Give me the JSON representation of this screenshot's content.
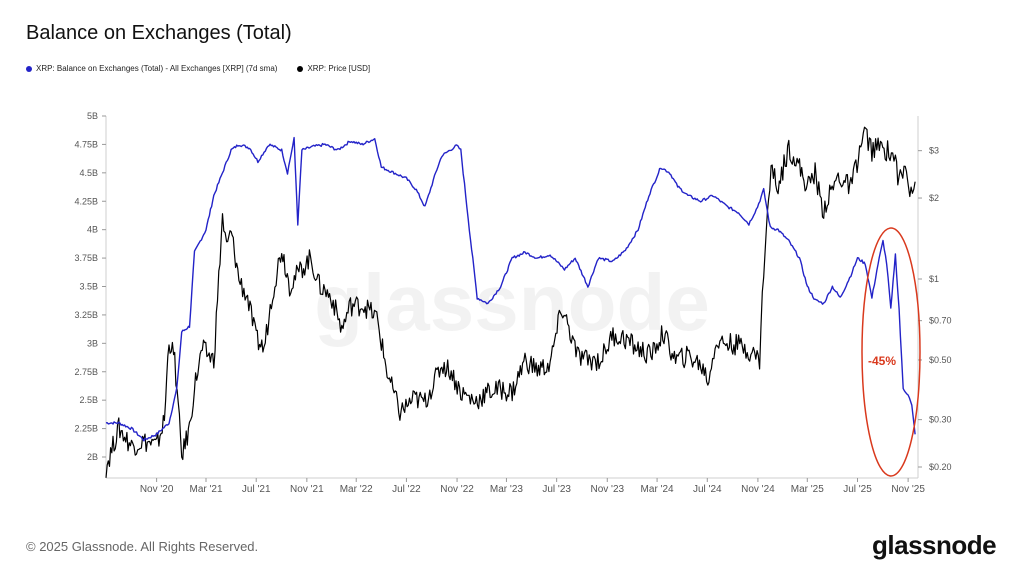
{
  "page": {
    "title": "Balance on Exchanges (Total)",
    "footer": "© 2025 Glassnode. All Rights Reserved.",
    "brand": "glassnode",
    "watermark": "glassnode"
  },
  "colors": {
    "balance": "#2323c8",
    "price": "#000000",
    "annotation": "#d9391d",
    "grid": "#e6e6e6",
    "axis": "#555555"
  },
  "chart_data": {
    "type": "line",
    "x_ticks": [
      "Nov '20",
      "Mar '21",
      "Jul '21",
      "Nov '21",
      "Mar '22",
      "Jul '22",
      "Nov '22",
      "Mar '23",
      "Jul '23",
      "Nov '23",
      "Mar '24",
      "Jul '24",
      "Nov '24",
      "Mar '25",
      "Jul '25",
      "Nov '25"
    ],
    "y_left": {
      "ticks": [
        "5B",
        "4.75B",
        "4.5B",
        "4.25B",
        "4B",
        "3.75B",
        "3.5B",
        "3.25B",
        "3B",
        "2.75B",
        "2.5B",
        "2.25B",
        "2B"
      ],
      "min": 2.0,
      "max": 5.0,
      "unit": "B XRP"
    },
    "y_right": {
      "ticks": [
        "$3",
        "$2",
        "$1",
        "$0.70",
        "$0.50",
        "$0.30",
        "$0.20"
      ],
      "values": [
        3,
        2,
        1,
        0.7,
        0.5,
        0.3,
        0.2
      ],
      "scale": "log"
    },
    "annotation": {
      "label": "-45%"
    },
    "series": [
      {
        "name": "XRP: Balance on Exchanges (Total) - All Exchanges [XRP] (7d sma)",
        "axis": "left",
        "points": [
          [
            "2020-07-01",
            2.3
          ],
          [
            "2020-08-01",
            2.3
          ],
          [
            "2020-09-01",
            2.25
          ],
          [
            "2020-10-01",
            2.15
          ],
          [
            "2020-11-01",
            2.2
          ],
          [
            "2020-12-01",
            2.3
          ],
          [
            "2020-12-20",
            2.6
          ],
          [
            "2021-01-01",
            3.1
          ],
          [
            "2021-01-20",
            3.15
          ],
          [
            "2021-02-01",
            3.8
          ],
          [
            "2021-03-01",
            4.0
          ],
          [
            "2021-03-20",
            4.3
          ],
          [
            "2021-04-10",
            4.5
          ],
          [
            "2021-05-01",
            4.7
          ],
          [
            "2021-05-20",
            4.75
          ],
          [
            "2021-06-15",
            4.72
          ],
          [
            "2021-07-05",
            4.6
          ],
          [
            "2021-08-01",
            4.75
          ],
          [
            "2021-09-01",
            4.7
          ],
          [
            "2021-09-15",
            4.5
          ],
          [
            "2021-10-01",
            4.8
          ],
          [
            "2021-10-10",
            4.05
          ],
          [
            "2021-10-20",
            4.7
          ],
          [
            "2021-11-15",
            4.73
          ],
          [
            "2021-12-15",
            4.75
          ],
          [
            "2022-01-15",
            4.7
          ],
          [
            "2022-02-15",
            4.78
          ],
          [
            "2022-03-15",
            4.75
          ],
          [
            "2022-04-15",
            4.8
          ],
          [
            "2022-05-01",
            4.55
          ],
          [
            "2022-06-01",
            4.5
          ],
          [
            "2022-07-01",
            4.45
          ],
          [
            "2022-07-25",
            4.35
          ],
          [
            "2022-08-15",
            4.2
          ],
          [
            "2022-09-10",
            4.5
          ],
          [
            "2022-09-25",
            4.65
          ],
          [
            "2022-10-15",
            4.7
          ],
          [
            "2022-10-31",
            4.74
          ],
          [
            "2022-11-10",
            4.7
          ],
          [
            "2022-12-01",
            4.0
          ],
          [
            "2022-12-20",
            3.4
          ],
          [
            "2023-01-15",
            3.35
          ],
          [
            "2023-02-15",
            3.5
          ],
          [
            "2023-03-15",
            3.75
          ],
          [
            "2023-04-15",
            3.8
          ],
          [
            "2023-05-15",
            3.75
          ],
          [
            "2023-06-15",
            3.78
          ],
          [
            "2023-07-20",
            3.65
          ],
          [
            "2023-08-15",
            3.75
          ],
          [
            "2023-09-15",
            3.5
          ],
          [
            "2023-10-10",
            3.75
          ],
          [
            "2023-11-15",
            3.72
          ],
          [
            "2023-12-15",
            3.82
          ],
          [
            "2024-01-15",
            4.0
          ],
          [
            "2024-02-10",
            4.3
          ],
          [
            "2024-03-10",
            4.55
          ],
          [
            "2024-04-01",
            4.5
          ],
          [
            "2024-04-20",
            4.38
          ],
          [
            "2024-05-15",
            4.3
          ],
          [
            "2024-06-15",
            4.25
          ],
          [
            "2024-07-15",
            4.3
          ],
          [
            "2024-08-20",
            4.2
          ],
          [
            "2024-09-15",
            4.15
          ],
          [
            "2024-10-10",
            4.05
          ],
          [
            "2024-10-31",
            4.2
          ],
          [
            "2024-11-15",
            4.35
          ],
          [
            "2024-12-01",
            4.02
          ],
          [
            "2024-12-20",
            4.0
          ],
          [
            "2025-01-15",
            3.9
          ],
          [
            "2025-02-10",
            3.75
          ],
          [
            "2025-03-01",
            3.5
          ],
          [
            "2025-03-20",
            3.38
          ],
          [
            "2025-04-10",
            3.35
          ],
          [
            "2025-05-01",
            3.5
          ],
          [
            "2025-05-20",
            3.4
          ],
          [
            "2025-06-15",
            3.6
          ],
          [
            "2025-07-01",
            3.75
          ],
          [
            "2025-07-20",
            3.7
          ],
          [
            "2025-08-05",
            3.4
          ],
          [
            "2025-08-20",
            3.7
          ],
          [
            "2025-09-01",
            3.9
          ],
          [
            "2025-09-10",
            3.7
          ],
          [
            "2025-09-20",
            3.3
          ],
          [
            "2025-10-01",
            3.78
          ],
          [
            "2025-10-10",
            3.3
          ],
          [
            "2025-10-20",
            2.6
          ],
          [
            "2025-11-01",
            2.55
          ],
          [
            "2025-11-10",
            2.45
          ],
          [
            "2025-11-18",
            2.2
          ]
        ]
      },
      {
        "name": "XRP: Price [USD]",
        "axis": "right",
        "points": [
          [
            "2020-07-01",
            0.2
          ],
          [
            "2020-08-01",
            0.28
          ],
          [
            "2020-09-01",
            0.24
          ],
          [
            "2020-10-01",
            0.25
          ],
          [
            "2020-11-01",
            0.24
          ],
          [
            "2020-11-20",
            0.3
          ],
          [
            "2020-12-01",
            0.6
          ],
          [
            "2020-12-15",
            0.5
          ],
          [
            "2021-01-01",
            0.22
          ],
          [
            "2021-01-20",
            0.28
          ],
          [
            "2021-02-01",
            0.4
          ],
          [
            "2021-02-20",
            0.55
          ],
          [
            "2021-03-20",
            0.5
          ],
          [
            "2021-04-10",
            1.7
          ],
          [
            "2021-04-20",
            1.3
          ],
          [
            "2021-05-01",
            1.5
          ],
          [
            "2021-05-20",
            1.0
          ],
          [
            "2021-06-10",
            0.85
          ],
          [
            "2021-07-01",
            0.6
          ],
          [
            "2021-07-20",
            0.55
          ],
          [
            "2021-08-10",
            0.9
          ],
          [
            "2021-09-01",
            1.3
          ],
          [
            "2021-09-20",
            0.95
          ],
          [
            "2021-10-10",
            1.05
          ],
          [
            "2021-11-10",
            1.2
          ],
          [
            "2021-12-01",
            0.95
          ],
          [
            "2022-01-01",
            0.85
          ],
          [
            "2022-01-25",
            0.65
          ],
          [
            "2022-02-15",
            0.8
          ],
          [
            "2022-03-20",
            0.8
          ],
          [
            "2022-04-20",
            0.72
          ],
          [
            "2022-05-15",
            0.45
          ],
          [
            "2022-06-15",
            0.32
          ],
          [
            "2022-07-20",
            0.36
          ],
          [
            "2022-08-15",
            0.35
          ],
          [
            "2022-09-25",
            0.48
          ],
          [
            "2022-10-15",
            0.46
          ],
          [
            "2022-11-10",
            0.38
          ],
          [
            "2022-12-15",
            0.35
          ],
          [
            "2023-01-15",
            0.38
          ],
          [
            "2023-02-15",
            0.39
          ],
          [
            "2023-03-15",
            0.38
          ],
          [
            "2023-04-15",
            0.5
          ],
          [
            "2023-05-15",
            0.46
          ],
          [
            "2023-06-15",
            0.48
          ],
          [
            "2023-07-13",
            0.78
          ],
          [
            "2023-07-25",
            0.7
          ],
          [
            "2023-08-20",
            0.52
          ],
          [
            "2023-09-15",
            0.5
          ],
          [
            "2023-10-15",
            0.5
          ],
          [
            "2023-11-15",
            0.62
          ],
          [
            "2023-12-15",
            0.6
          ],
          [
            "2024-01-15",
            0.55
          ],
          [
            "2024-02-15",
            0.52
          ],
          [
            "2024-03-15",
            0.63
          ],
          [
            "2024-04-15",
            0.5
          ],
          [
            "2024-05-15",
            0.52
          ],
          [
            "2024-06-15",
            0.48
          ],
          [
            "2024-07-05",
            0.42
          ],
          [
            "2024-07-20",
            0.58
          ],
          [
            "2024-08-15",
            0.58
          ],
          [
            "2024-09-15",
            0.57
          ],
          [
            "2024-10-15",
            0.54
          ],
          [
            "2024-11-05",
            0.5
          ],
          [
            "2024-11-15",
            1.1
          ],
          [
            "2024-12-03",
            2.6
          ],
          [
            "2024-12-20",
            2.2
          ],
          [
            "2025-01-15",
            3.1
          ],
          [
            "2025-02-10",
            2.6
          ],
          [
            "2025-03-01",
            2.2
          ],
          [
            "2025-03-20",
            2.5
          ],
          [
            "2025-04-07",
            1.8
          ],
          [
            "2025-05-15",
            2.4
          ],
          [
            "2025-06-15",
            2.2
          ],
          [
            "2025-07-18",
            3.55
          ],
          [
            "2025-08-05",
            3.0
          ],
          [
            "2025-08-20",
            3.1
          ],
          [
            "2025-09-15",
            3.0
          ],
          [
            "2025-10-01",
            2.8
          ],
          [
            "2025-10-10",
            2.3
          ],
          [
            "2025-10-25",
            2.6
          ],
          [
            "2025-11-05",
            2.2
          ],
          [
            "2025-11-18",
            2.3
          ]
        ]
      }
    ]
  }
}
